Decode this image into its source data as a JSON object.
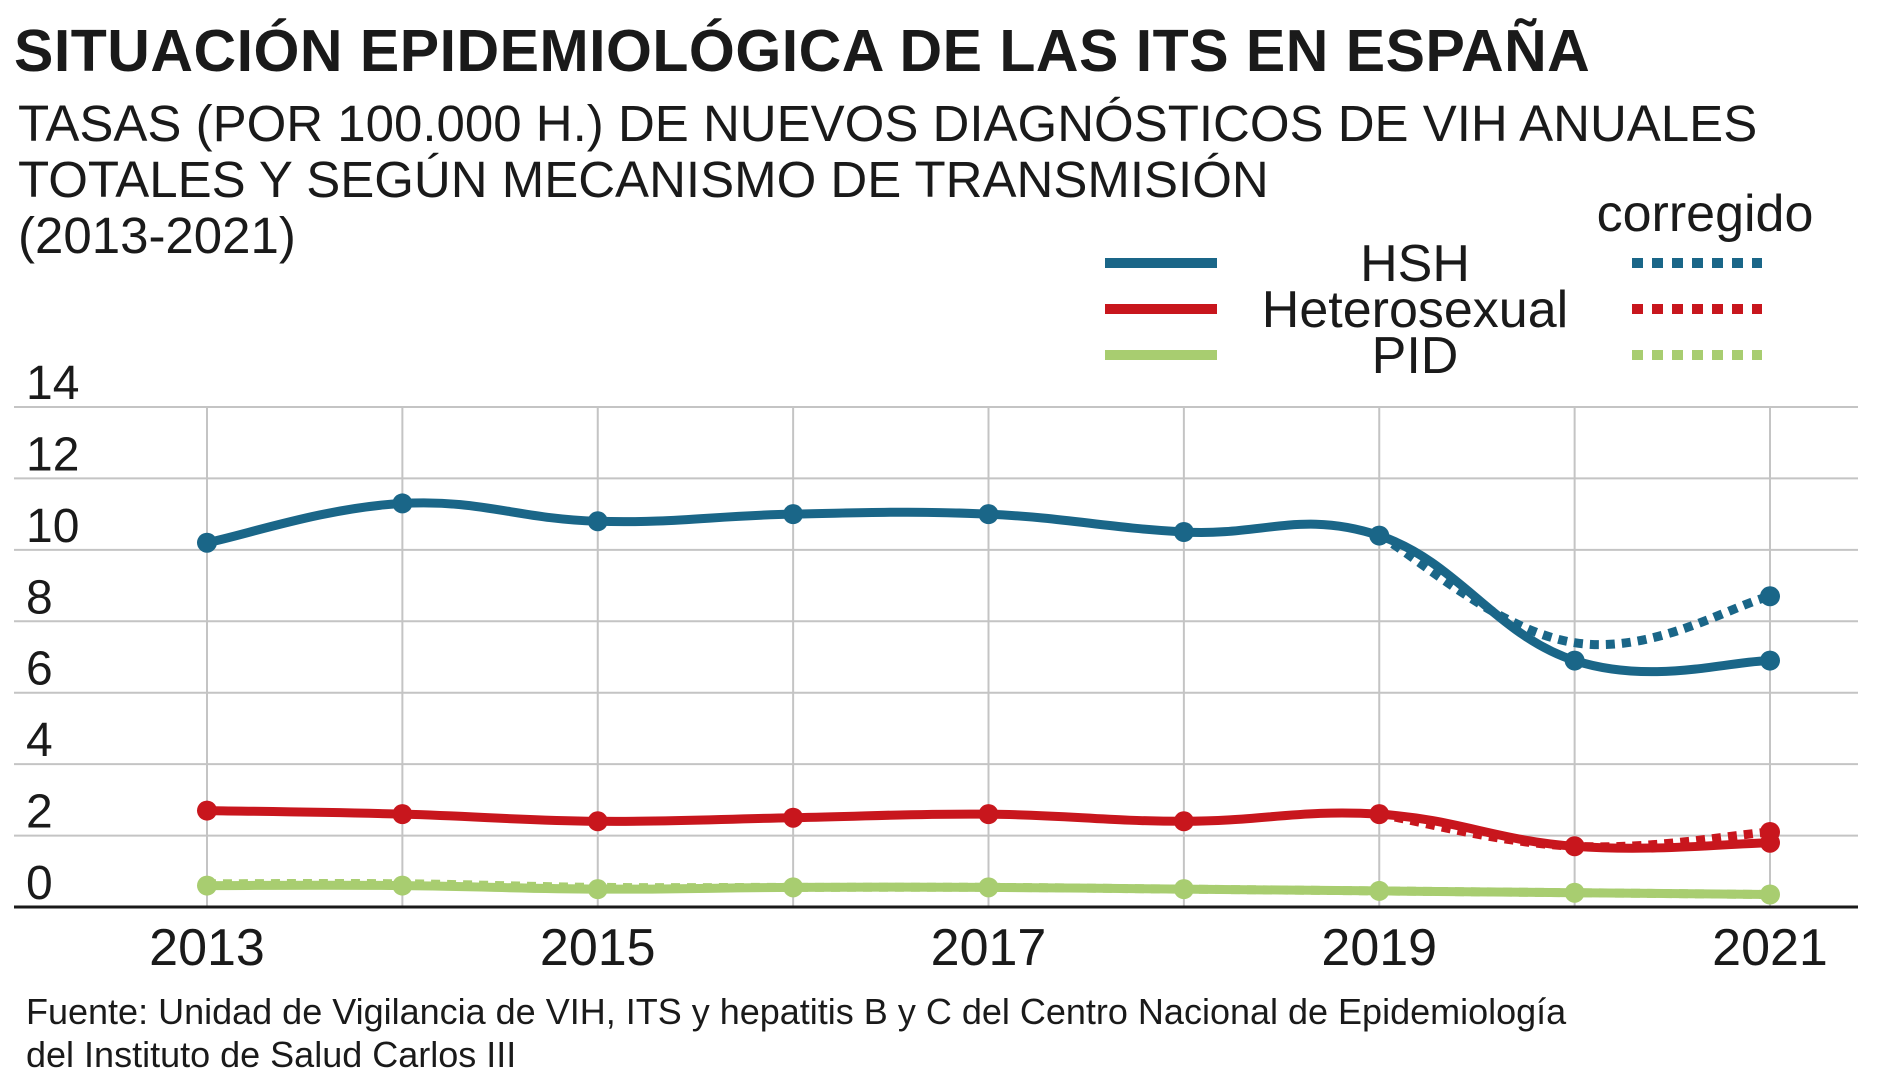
{
  "title": "SITUACIÓN EPIDEMIOLÓGICA DE LAS ITS EN ESPAÑA",
  "subtitle_lines": [
    "TASAS (POR 100.000 H.) DE NUEVOS DIAGNÓSTICOS DE VIH ANUALES",
    "TOTALES Y SEGÚN MECANISMO DE TRANSMISIÓN",
    "(2013-2021)"
  ],
  "source_lines": [
    "Fuente: Unidad de Vigilancia de VIH, ITS y hepatitis B y C del Centro Nacional de Epidemiología",
    "del Instituto de Salud Carlos III"
  ],
  "legend": {
    "corrected_label": "corregido"
  },
  "chart_data": {
    "type": "line",
    "x": [
      2013,
      2014,
      2015,
      2016,
      2017,
      2018,
      2019,
      2020,
      2021
    ],
    "x_tick_labels": [
      "2013",
      "2015",
      "2017",
      "2019",
      "2021"
    ],
    "y_tick_labels": [
      "0",
      "2",
      "4",
      "6",
      "8",
      "10",
      "12",
      "14"
    ],
    "ylim": [
      0,
      14
    ],
    "xlim": [
      2013,
      2021
    ],
    "grid": true,
    "legend_position": "top-right",
    "series": [
      {
        "name": "HSH",
        "color": "#1a6688",
        "values": [
          10.2,
          11.3,
          10.8,
          11.0,
          11.0,
          10.5,
          10.4,
          6.9,
          6.9
        ],
        "corrected": [
          null,
          null,
          null,
          null,
          null,
          null,
          10.4,
          7.4,
          8.7
        ]
      },
      {
        "name": "Heterosexual",
        "color": "#c8161d",
        "values": [
          2.7,
          2.6,
          2.4,
          2.5,
          2.6,
          2.4,
          2.6,
          1.7,
          1.8
        ],
        "corrected": [
          null,
          null,
          null,
          null,
          null,
          null,
          2.6,
          1.7,
          2.1
        ]
      },
      {
        "name": "PID",
        "color": "#a8cd70",
        "values": [
          0.6,
          0.6,
          0.5,
          0.55,
          0.55,
          0.5,
          0.45,
          0.4,
          0.35
        ],
        "corrected": [
          0.65,
          0.65,
          0.55,
          0.55,
          0.55,
          0.5,
          0.45,
          0.4,
          0.35
        ]
      }
    ]
  }
}
